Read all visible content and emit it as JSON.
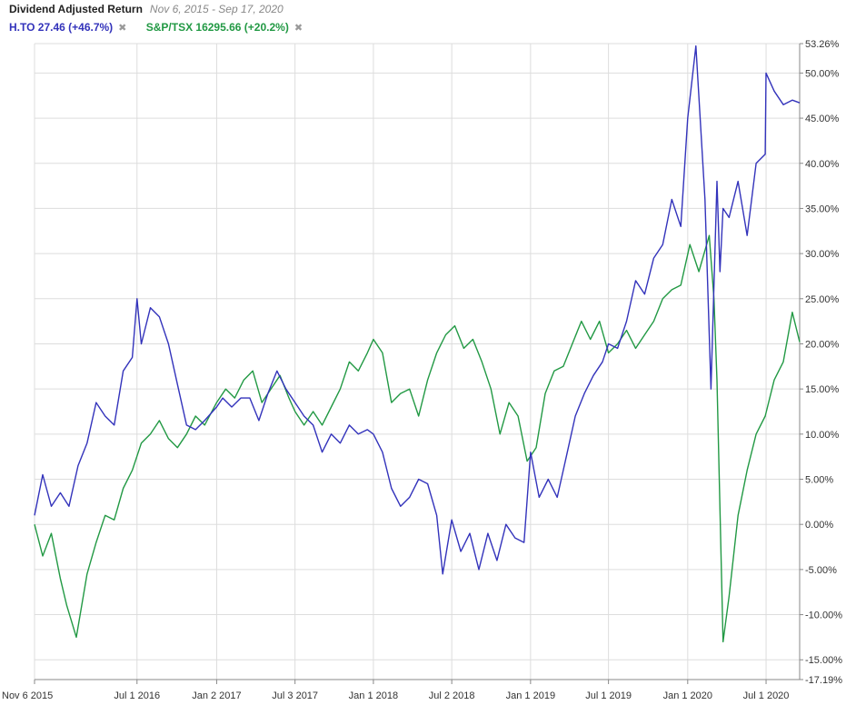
{
  "chart_data": {
    "type": "line",
    "title": "Dividend Adjusted Return",
    "subtitle": "Nov 6, 2015 - Sep 17, 2020",
    "xlabel": "",
    "ylabel": "",
    "y_unit": "%",
    "ylim": [
      -17.19,
      53.26
    ],
    "yticks": [
      "53.26%",
      "50.00%",
      "45.00%",
      "40.00%",
      "35.00%",
      "30.00%",
      "25.00%",
      "20.00%",
      "15.00%",
      "10.00%",
      "5.00%",
      "0.00%",
      "-5.00%",
      "-10.00%",
      "-15.00%",
      "-17.19%"
    ],
    "ytick_values": [
      53.26,
      50,
      45,
      40,
      35,
      30,
      25,
      20,
      15,
      10,
      5,
      0,
      -5,
      -10,
      -15,
      -17.19
    ],
    "xlim": [
      "2015-11-06",
      "2020-09-17"
    ],
    "xticks": [
      "Nov 6 2015",
      "Jul 1 2016",
      "Jan 2 2017",
      "Jul 3 2017",
      "Jan 1 2018",
      "Jul 2 2018",
      "Jan 1 2019",
      "Jul 1 2019",
      "Jan 1 2020",
      "Jul 1 2020"
    ],
    "xtick_dates": [
      "2015-11-06",
      "2016-07-01",
      "2017-01-02",
      "2017-07-03",
      "2018-01-01",
      "2018-07-02",
      "2019-01-01",
      "2019-07-01",
      "2020-01-01",
      "2020-07-01"
    ],
    "grid": true,
    "axis_side": "right",
    "legend_position": "top-left",
    "series": [
      {
        "name": "H.TO",
        "legend_label": "H.TO 27.46 (+46.7%)",
        "color": "#3333bb",
        "x": [
          "2015-11-06",
          "2015-11-25",
          "2015-12-15",
          "2016-01-05",
          "2016-01-25",
          "2016-02-15",
          "2016-03-07",
          "2016-03-28",
          "2016-04-18",
          "2016-05-09",
          "2016-05-30",
          "2016-06-20",
          "2016-07-01",
          "2016-07-11",
          "2016-08-01",
          "2016-08-22",
          "2016-09-12",
          "2016-10-03",
          "2016-10-24",
          "2016-11-14",
          "2016-12-05",
          "2017-01-02",
          "2017-01-16",
          "2017-02-06",
          "2017-02-27",
          "2017-03-20",
          "2017-04-10",
          "2017-05-01",
          "2017-05-22",
          "2017-06-12",
          "2017-07-03",
          "2017-07-24",
          "2017-08-14",
          "2017-09-04",
          "2017-09-25",
          "2017-10-16",
          "2017-11-06",
          "2017-11-27",
          "2017-12-18",
          "2018-01-01",
          "2018-01-22",
          "2018-02-12",
          "2018-03-05",
          "2018-03-26",
          "2018-04-16",
          "2018-05-07",
          "2018-05-28",
          "2018-06-11",
          "2018-07-02",
          "2018-07-23",
          "2018-08-13",
          "2018-09-03",
          "2018-09-24",
          "2018-10-15",
          "2018-11-05",
          "2018-11-26",
          "2018-12-17",
          "2019-01-01",
          "2019-01-21",
          "2019-02-11",
          "2019-03-04",
          "2019-03-25",
          "2019-04-15",
          "2019-05-06",
          "2019-05-27",
          "2019-06-17",
          "2019-07-01",
          "2019-07-22",
          "2019-08-12",
          "2019-09-02",
          "2019-09-23",
          "2019-10-14",
          "2019-11-04",
          "2019-11-25",
          "2019-12-16",
          "2020-01-01",
          "2020-01-20",
          "2020-02-10",
          "2020-02-24",
          "2020-03-09",
          "2020-03-16",
          "2020-03-23",
          "2020-04-06",
          "2020-04-27",
          "2020-05-18",
          "2020-06-08",
          "2020-06-29",
          "2020-07-01",
          "2020-07-20",
          "2020-08-10",
          "2020-08-31",
          "2020-09-17"
        ],
        "values": [
          1.0,
          5.5,
          2.0,
          3.5,
          2.0,
          6.5,
          9.0,
          13.5,
          12.0,
          11.0,
          17.0,
          18.5,
          25.0,
          20.0,
          24.0,
          23.0,
          20.0,
          15.5,
          11.0,
          10.5,
          11.5,
          13.0,
          14.0,
          13.0,
          14.0,
          14.0,
          11.5,
          14.5,
          17.0,
          15.0,
          13.5,
          12.0,
          11.0,
          8.0,
          10.0,
          9.0,
          11.0,
          10.0,
          10.5,
          10.0,
          8.0,
          4.0,
          2.0,
          3.0,
          5.0,
          4.5,
          1.0,
          -5.5,
          0.5,
          -3.0,
          -1.0,
          -5.0,
          -1.0,
          -4.0,
          0.0,
          -1.5,
          -2.0,
          8.0,
          3.0,
          5.0,
          3.0,
          7.5,
          12.0,
          14.5,
          16.5,
          18.0,
          20.0,
          19.5,
          22.5,
          27.0,
          25.5,
          29.5,
          31.0,
          36.0,
          33.0,
          45.0,
          53.0,
          36.0,
          15.0,
          38.0,
          28.0,
          35.0,
          34.0,
          38.0,
          32.0,
          40.0,
          41.0,
          50.0,
          48.0,
          46.5,
          47.0,
          46.7
        ]
      },
      {
        "name": "S&P/TSX",
        "legend_label": "S&P/TSX 16295.66 (+20.2%)",
        "color": "#229944",
        "x": [
          "2015-11-06",
          "2015-11-25",
          "2015-12-15",
          "2016-01-05",
          "2016-01-20",
          "2016-02-11",
          "2016-03-07",
          "2016-03-28",
          "2016-04-18",
          "2016-05-09",
          "2016-05-30",
          "2016-06-20",
          "2016-07-11",
          "2016-08-01",
          "2016-08-22",
          "2016-09-12",
          "2016-10-03",
          "2016-10-24",
          "2016-11-14",
          "2016-12-05",
          "2017-01-02",
          "2017-01-23",
          "2017-02-13",
          "2017-03-06",
          "2017-03-27",
          "2017-04-17",
          "2017-05-08",
          "2017-05-29",
          "2017-06-19",
          "2017-07-03",
          "2017-07-24",
          "2017-08-14",
          "2017-09-04",
          "2017-09-25",
          "2017-10-16",
          "2017-11-06",
          "2017-11-27",
          "2017-12-18",
          "2018-01-01",
          "2018-01-22",
          "2018-02-12",
          "2018-03-05",
          "2018-03-26",
          "2018-04-16",
          "2018-05-07",
          "2018-05-28",
          "2018-06-18",
          "2018-07-09",
          "2018-07-30",
          "2018-08-20",
          "2018-09-10",
          "2018-10-01",
          "2018-10-22",
          "2018-11-12",
          "2018-12-03",
          "2018-12-24",
          "2019-01-14",
          "2019-02-04",
          "2019-02-25",
          "2019-03-18",
          "2019-04-08",
          "2019-04-29",
          "2019-05-20",
          "2019-06-10",
          "2019-07-01",
          "2019-07-22",
          "2019-08-12",
          "2019-09-02",
          "2019-09-23",
          "2019-10-14",
          "2019-11-04",
          "2019-11-25",
          "2019-12-16",
          "2020-01-06",
          "2020-01-27",
          "2020-02-20",
          "2020-03-02",
          "2020-03-09",
          "2020-03-23",
          "2020-04-06",
          "2020-04-27",
          "2020-05-18",
          "2020-06-08",
          "2020-06-29",
          "2020-07-20",
          "2020-08-10",
          "2020-08-31",
          "2020-09-17"
        ],
        "values": [
          0.0,
          -3.5,
          -1.0,
          -6.0,
          -9.0,
          -12.5,
          -5.5,
          -2.0,
          1.0,
          0.5,
          4.0,
          6.0,
          9.0,
          10.0,
          11.5,
          9.5,
          8.5,
          10.0,
          12.0,
          11.0,
          13.5,
          15.0,
          14.0,
          16.0,
          17.0,
          13.5,
          15.0,
          16.5,
          14.0,
          12.5,
          11.0,
          12.5,
          11.0,
          13.0,
          15.0,
          18.0,
          17.0,
          19.0,
          20.5,
          19.0,
          13.5,
          14.5,
          15.0,
          12.0,
          16.0,
          19.0,
          21.0,
          22.0,
          19.5,
          20.5,
          18.0,
          15.0,
          10.0,
          13.5,
          12.0,
          7.0,
          8.5,
          14.5,
          17.0,
          17.5,
          20.0,
          22.5,
          20.5,
          22.5,
          19.0,
          20.0,
          21.5,
          19.5,
          21.0,
          22.5,
          25.0,
          26.0,
          26.5,
          31.0,
          28.0,
          32.0,
          25.0,
          16.0,
          -13.0,
          -8.0,
          1.0,
          6.0,
          10.0,
          12.0,
          16.0,
          18.0,
          23.5,
          20.2
        ]
      }
    ]
  }
}
